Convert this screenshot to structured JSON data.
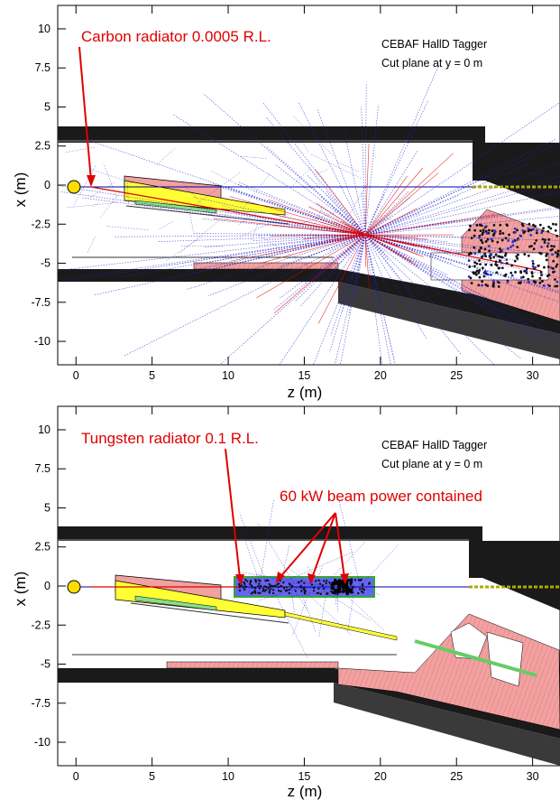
{
  "chart_data": [
    {
      "type": "scatter",
      "title": "",
      "xlabel": "z (m)",
      "ylabel": "x (m)",
      "xlim": [
        -1.2,
        31.8
      ],
      "ylim": [
        -11.5,
        11.5
      ],
      "x_ticks": [
        0,
        5,
        10,
        15,
        20,
        25,
        30
      ],
      "y_ticks": [
        10,
        7.5,
        5,
        2.5,
        0,
        -2.5,
        -5,
        -7.5,
        -10
      ],
      "grid": false,
      "annotations": [
        {
          "text": "CEBAF HallD Tagger"
        },
        {
          "text": "Cut plane at y = 0 m"
        },
        {
          "text": "Carbon radiator 0.0005 R.L."
        }
      ],
      "radiator_z": 1.0,
      "beam_dump_z": 0.0,
      "beam_x": 0.0,
      "tracks_color_electron": "#e00000",
      "tracks_color_photon": "#0000dd",
      "magnet_color": "#ffff33",
      "shield_color": "#f2a0a0"
    },
    {
      "type": "scatter",
      "title": "",
      "xlabel": "z (m)",
      "ylabel": "x (m)",
      "xlim": [
        -1.2,
        31.8
      ],
      "ylim": [
        -11.5,
        11.5
      ],
      "x_ticks": [
        0,
        5,
        10,
        15,
        20,
        25,
        30
      ],
      "y_ticks": [
        10,
        7.5,
        5,
        2.5,
        0,
        -2.5,
        -5,
        -7.5,
        -10
      ],
      "grid": false,
      "annotations": [
        {
          "text": "CEBAF HallD Tagger"
        },
        {
          "text": "Cut plane at y = 0 m"
        },
        {
          "text": "Tungsten radiator 0.1 R.L."
        },
        {
          "text": "60 kW beam power contained"
        }
      ],
      "radiator_z": 11.0,
      "beam_dump_z": 0.0,
      "beam_x": 0.0,
      "tracks_color_electron": "#e00000",
      "tracks_color_photon": "#0000dd",
      "magnet_color": "#ffff33",
      "shield_color": "#f2a0a0",
      "absorber_color": "#66cc66"
    }
  ]
}
